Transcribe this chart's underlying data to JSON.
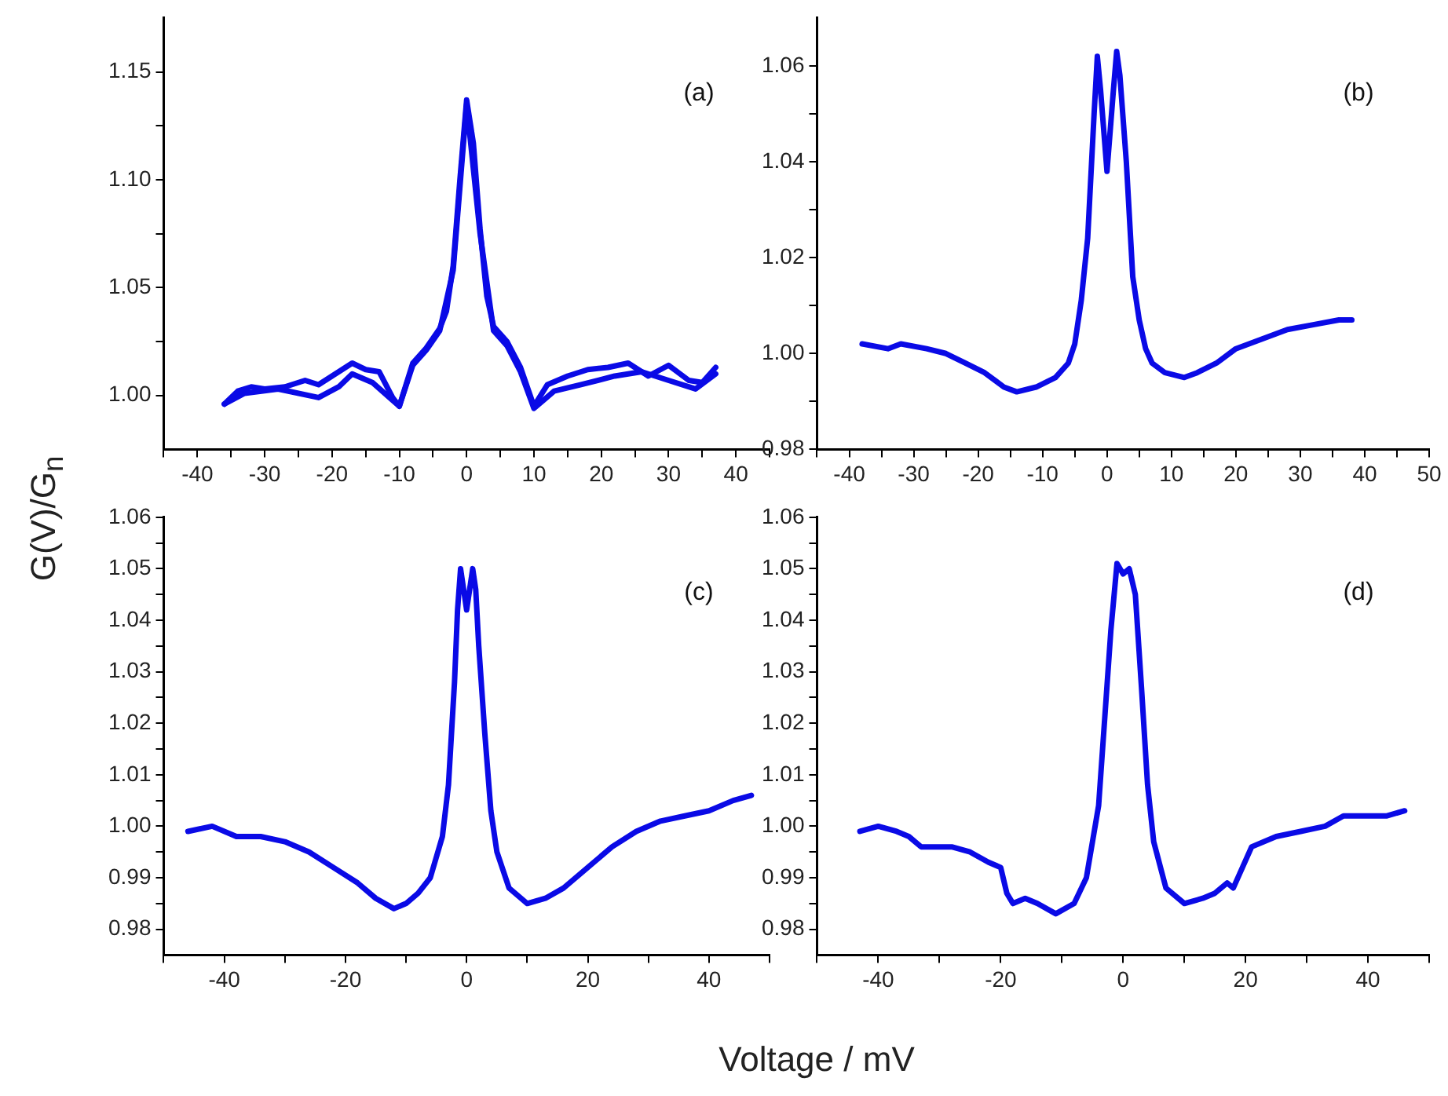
{
  "chart_data": [
    {
      "type": "line",
      "ylabel": "G(V)/G$_{n}$",
      "annotations": [
        "(a)"
      ],
      "xlim": [
        -45,
        45
      ],
      "ylim": [
        0.975,
        1.175
      ],
      "xticks": [
        {
          "value": -45,
          "label": null
        },
        -40,
        {
          "value": -35,
          "label": null
        },
        -30,
        {
          "value": -25,
          "label": null
        },
        -20,
        {
          "value": -15,
          "label": null
        },
        -10,
        {
          "value": -5,
          "label": null
        },
        0,
        {
          "value": 5,
          "label": null
        },
        10,
        {
          "value": 15,
          "label": null
        },
        20,
        {
          "value": 25,
          "label": null
        },
        30,
        {
          "value": 35,
          "label": null
        },
        40,
        {
          "value": 45,
          "label": null
        }
      ],
      "yticks": [
        {
          "value": 1.0,
          "label": "1.00"
        },
        {
          "value": 1.025,
          "label": null
        },
        1.05,
        {
          "value": 1.075,
          "label": null
        },
        {
          "value": 1.1,
          "label": "1.10"
        },
        {
          "value": 1.125,
          "label": null
        },
        1.15
      ],
      "series": [
        {
          "color": "#0a0ae6",
          "x": [
            -36,
            -34,
            -32,
            -30,
            -27,
            -24,
            -22,
            -20,
            -17,
            -15,
            -13,
            -11,
            -10,
            -8,
            -6,
            -4,
            -3,
            -2,
            -1,
            0,
            1,
            2,
            3,
            4,
            6,
            8,
            10,
            12,
            15,
            18,
            21,
            24,
            27,
            30,
            33,
            35,
            37
          ],
          "values": [
            0.996,
            1.002,
            1.004,
            1.003,
            1.004,
            1.007,
            1.005,
            1.009,
            1.015,
            1.012,
            1.011,
            0.999,
            0.995,
            1.015,
            1.022,
            1.031,
            1.039,
            1.06,
            1.1,
            1.137,
            1.117,
            1.077,
            1.046,
            1.032,
            1.025,
            1.013,
            0.995,
            1.005,
            1.009,
            1.012,
            1.013,
            1.015,
            1.009,
            1.014,
            1.007,
            1.006,
            1.013
          ]
        },
        {
          "color": "#0a0ae6",
          "x": [
            -36,
            -33,
            -28,
            -22,
            -19,
            -17,
            -14,
            -10,
            -8,
            -6,
            -4,
            -2,
            0,
            2,
            4,
            6,
            8,
            10,
            13,
            17,
            22,
            26,
            30,
            34,
            37
          ],
          "values": [
            0.996,
            1.001,
            1.003,
            0.999,
            1.004,
            1.01,
            1.006,
            0.995,
            1.014,
            1.021,
            1.03,
            1.058,
            1.135,
            1.075,
            1.03,
            1.023,
            1.011,
            0.994,
            1.002,
            1.005,
            1.009,
            1.011,
            1.007,
            1.003,
            1.01
          ]
        }
      ]
    },
    {
      "type": "line",
      "annotations": [
        "(b)"
      ],
      "xlim": [
        -45,
        50
      ],
      "ylim": [
        0.98,
        1.07
      ],
      "xticks": [
        {
          "value": -45,
          "label": null
        },
        -40,
        {
          "value": -35,
          "label": null
        },
        -30,
        {
          "value": -25,
          "label": null
        },
        -20,
        {
          "value": -15,
          "label": null
        },
        -10,
        {
          "value": -5,
          "label": null
        },
        0,
        {
          "value": 5,
          "label": null
        },
        10,
        {
          "value": 15,
          "label": null
        },
        20,
        {
          "value": 25,
          "label": null
        },
        30,
        {
          "value": 35,
          "label": null
        },
        40,
        {
          "value": 45,
          "label": null
        },
        50
      ],
      "yticks": [
        0.98,
        {
          "value": 0.99,
          "label": null
        },
        {
          "value": 1.0,
          "label": "1.00"
        },
        {
          "value": 1.01,
          "label": null
        },
        1.02,
        {
          "value": 1.03,
          "label": null
        },
        1.04,
        {
          "value": 1.05,
          "label": null
        },
        1.06
      ],
      "series": [
        {
          "color": "#0a0ae6",
          "x": [
            -38,
            -34,
            -32,
            -28,
            -25,
            -22,
            -19,
            -16,
            -14,
            -11,
            -8,
            -6,
            -5,
            -4,
            -3,
            -2,
            -1.5,
            -1,
            0,
            1,
            1.5,
            2,
            3,
            4,
            5,
            6,
            7,
            9,
            12,
            14,
            17,
            20,
            24,
            28,
            32,
            36,
            38
          ],
          "values": [
            1.002,
            1.001,
            1.002,
            1.001,
            1.0,
            0.998,
            0.996,
            0.993,
            0.992,
            0.993,
            0.995,
            0.998,
            1.002,
            1.011,
            1.024,
            1.05,
            1.062,
            1.055,
            1.038,
            1.055,
            1.063,
            1.058,
            1.04,
            1.016,
            1.007,
            1.001,
            0.998,
            0.996,
            0.995,
            0.996,
            0.998,
            1.001,
            1.003,
            1.005,
            1.006,
            1.007,
            1.007
          ]
        }
      ]
    },
    {
      "type": "line",
      "xlabel": "Voltage / mV",
      "annotations": [
        "(c)"
      ],
      "xlim": [
        -50,
        50
      ],
      "ylim": [
        0.975,
        1.06
      ],
      "xticks": [
        {
          "value": -50,
          "label": null
        },
        -40,
        {
          "value": -30,
          "label": null
        },
        -20,
        {
          "value": -10,
          "label": null
        },
        0,
        {
          "value": 10,
          "label": null
        },
        20,
        {
          "value": 30,
          "label": null
        },
        40,
        {
          "value": 50,
          "label": null
        }
      ],
      "yticks": [
        0.98,
        {
          "value": 0.985,
          "label": null
        },
        0.99,
        {
          "value": 0.995,
          "label": null
        },
        {
          "value": 1.0,
          "label": "1.00"
        },
        {
          "value": 1.005,
          "label": null
        },
        1.01,
        {
          "value": 1.015,
          "label": null
        },
        1.02,
        {
          "value": 1.025,
          "label": null
        },
        1.03,
        {
          "value": 1.035,
          "label": null
        },
        1.04,
        {
          "value": 1.045,
          "label": null
        },
        1.05,
        {
          "value": 1.055,
          "label": null
        },
        1.06
      ],
      "series": [
        {
          "color": "#0a0ae6",
          "x": [
            -46,
            -42,
            -38,
            -34,
            -30,
            -26,
            -22,
            -18,
            -15,
            -12,
            -10,
            -8,
            -6,
            -4,
            -3,
            -2,
            -1.5,
            -1,
            0,
            1,
            1.5,
            2,
            3,
            4,
            5,
            7,
            10,
            13,
            16,
            20,
            24,
            28,
            32,
            36,
            40,
            44,
            47
          ],
          "values": [
            0.999,
            1.0,
            0.998,
            0.998,
            0.997,
            0.995,
            0.992,
            0.989,
            0.986,
            0.984,
            0.985,
            0.987,
            0.99,
            0.998,
            1.008,
            1.028,
            1.042,
            1.05,
            1.042,
            1.05,
            1.046,
            1.035,
            1.018,
            1.003,
            0.995,
            0.988,
            0.985,
            0.986,
            0.988,
            0.992,
            0.996,
            0.999,
            1.001,
            1.002,
            1.003,
            1.005,
            1.006
          ]
        }
      ]
    },
    {
      "type": "line",
      "annotations": [
        "(d)"
      ],
      "xlim": [
        -50,
        50
      ],
      "ylim": [
        0.975,
        1.06
      ],
      "xticks": [
        {
          "value": -50,
          "label": null
        },
        -40,
        {
          "value": -30,
          "label": null
        },
        -20,
        {
          "value": -10,
          "label": null
        },
        0,
        {
          "value": 10,
          "label": null
        },
        20,
        {
          "value": 30,
          "label": null
        },
        40,
        {
          "value": 50,
          "label": null
        }
      ],
      "yticks": [
        0.98,
        {
          "value": 0.985,
          "label": null
        },
        0.99,
        {
          "value": 0.995,
          "label": null
        },
        {
          "value": 1.0,
          "label": "1.00"
        },
        {
          "value": 1.005,
          "label": null
        },
        1.01,
        {
          "value": 1.015,
          "label": null
        },
        1.02,
        {
          "value": 1.025,
          "label": null
        },
        1.03,
        {
          "value": 1.035,
          "label": null
        },
        1.04,
        {
          "value": 1.045,
          "label": null
        },
        1.05,
        {
          "value": 1.055,
          "label": null
        },
        1.06
      ],
      "series": [
        {
          "color": "#0a0ae6",
          "x": [
            -43,
            -40,
            -37,
            -35,
            -33,
            -28,
            -25,
            -22,
            -20,
            -19,
            -18,
            -16,
            -14,
            -11,
            -8,
            -6,
            -4,
            -3,
            -2,
            -1,
            0,
            1,
            2,
            3,
            4,
            5,
            7,
            10,
            13,
            15,
            17,
            18,
            19.5,
            21,
            25,
            29,
            33,
            36,
            40,
            43,
            46
          ],
          "values": [
            0.999,
            1.0,
            0.999,
            0.998,
            0.996,
            0.996,
            0.995,
            0.993,
            0.992,
            0.987,
            0.985,
            0.986,
            0.985,
            0.983,
            0.985,
            0.99,
            1.004,
            1.021,
            1.038,
            1.051,
            1.049,
            1.05,
            1.045,
            1.027,
            1.008,
            0.997,
            0.988,
            0.985,
            0.986,
            0.987,
            0.989,
            0.988,
            0.992,
            0.996,
            0.998,
            0.999,
            1.0,
            1.002,
            1.002,
            1.002,
            1.003
          ]
        }
      ]
    }
  ]
}
